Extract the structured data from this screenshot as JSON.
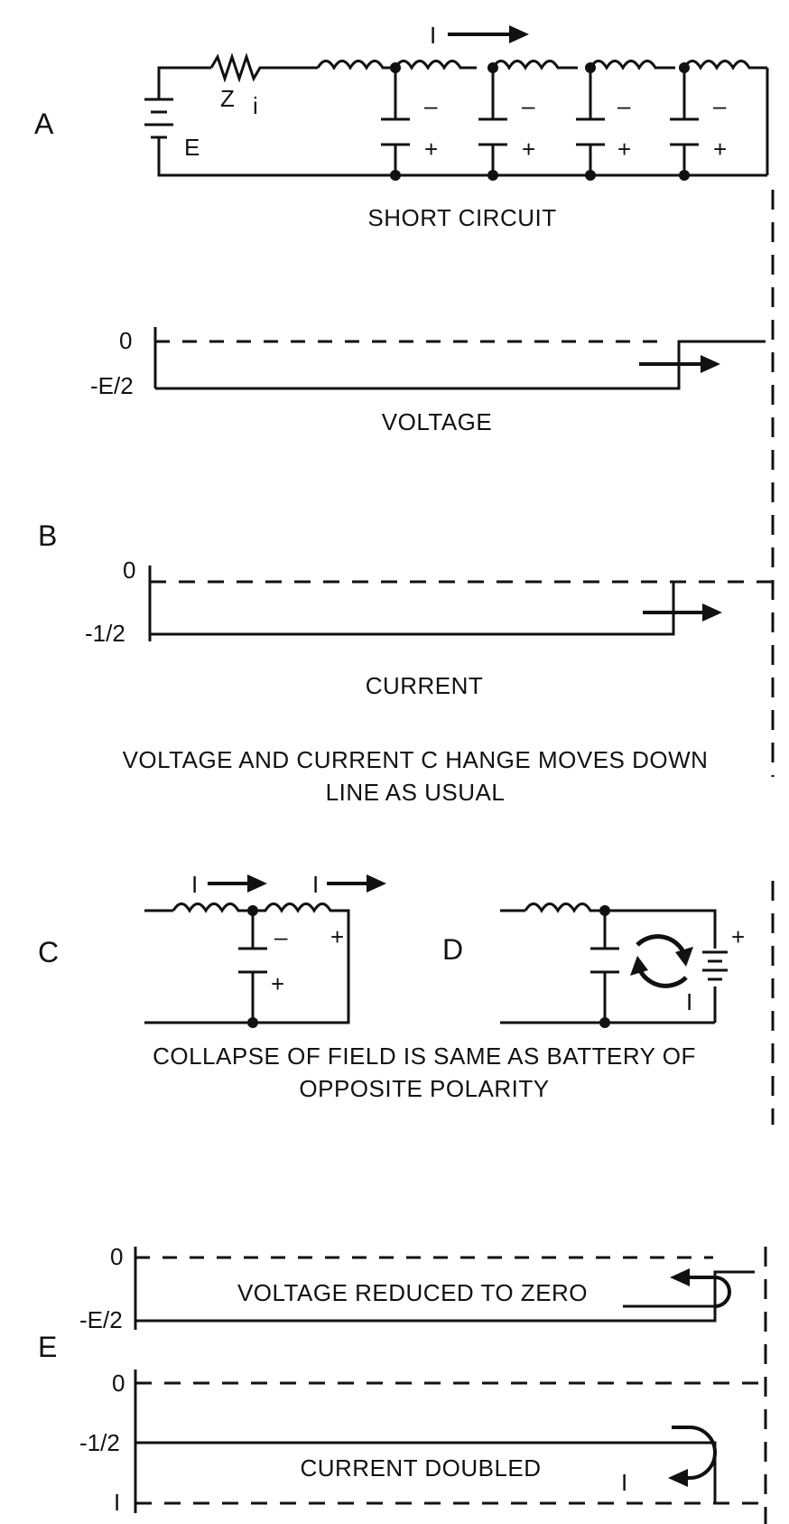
{
  "sections": {
    "a": "A",
    "b": "B",
    "c": "C",
    "d": "D",
    "e": "E"
  },
  "panel_a": {
    "impedance": "Z",
    "impedance_sub": "i",
    "battery": "E",
    "current": "I",
    "minus": "–",
    "plus": "+",
    "caption": "SHORT CIRCUIT"
  },
  "voltage_plot": {
    "zero": "0",
    "level": "-E/2",
    "caption": "VOLTAGE"
  },
  "current_plot": {
    "zero": "0",
    "level": "-1/2",
    "caption": "CURRENT"
  },
  "note_b": {
    "line1": "VOLTAGE AND CURRENT C HANGE MOVES DOWN",
    "line2": "LINE AS USUAL"
  },
  "panel_c": {
    "current": "I",
    "minus": "–",
    "plus": "+"
  },
  "panel_d": {
    "current": "I",
    "plus": "+"
  },
  "note_cd": {
    "line1": "COLLAPSE OF FIELD IS SAME AS BATTERY OF",
    "line2": "OPPOSITE POLARITY"
  },
  "panel_e": {
    "v_zero": "0",
    "v_level": "-E/2",
    "v_caption": "VOLTAGE REDUCED TO ZERO",
    "i_zero": "0",
    "i_level": "-1/2",
    "i_bottom": "I",
    "i_caption": "CURRENT DOUBLED",
    "marker": "I"
  }
}
